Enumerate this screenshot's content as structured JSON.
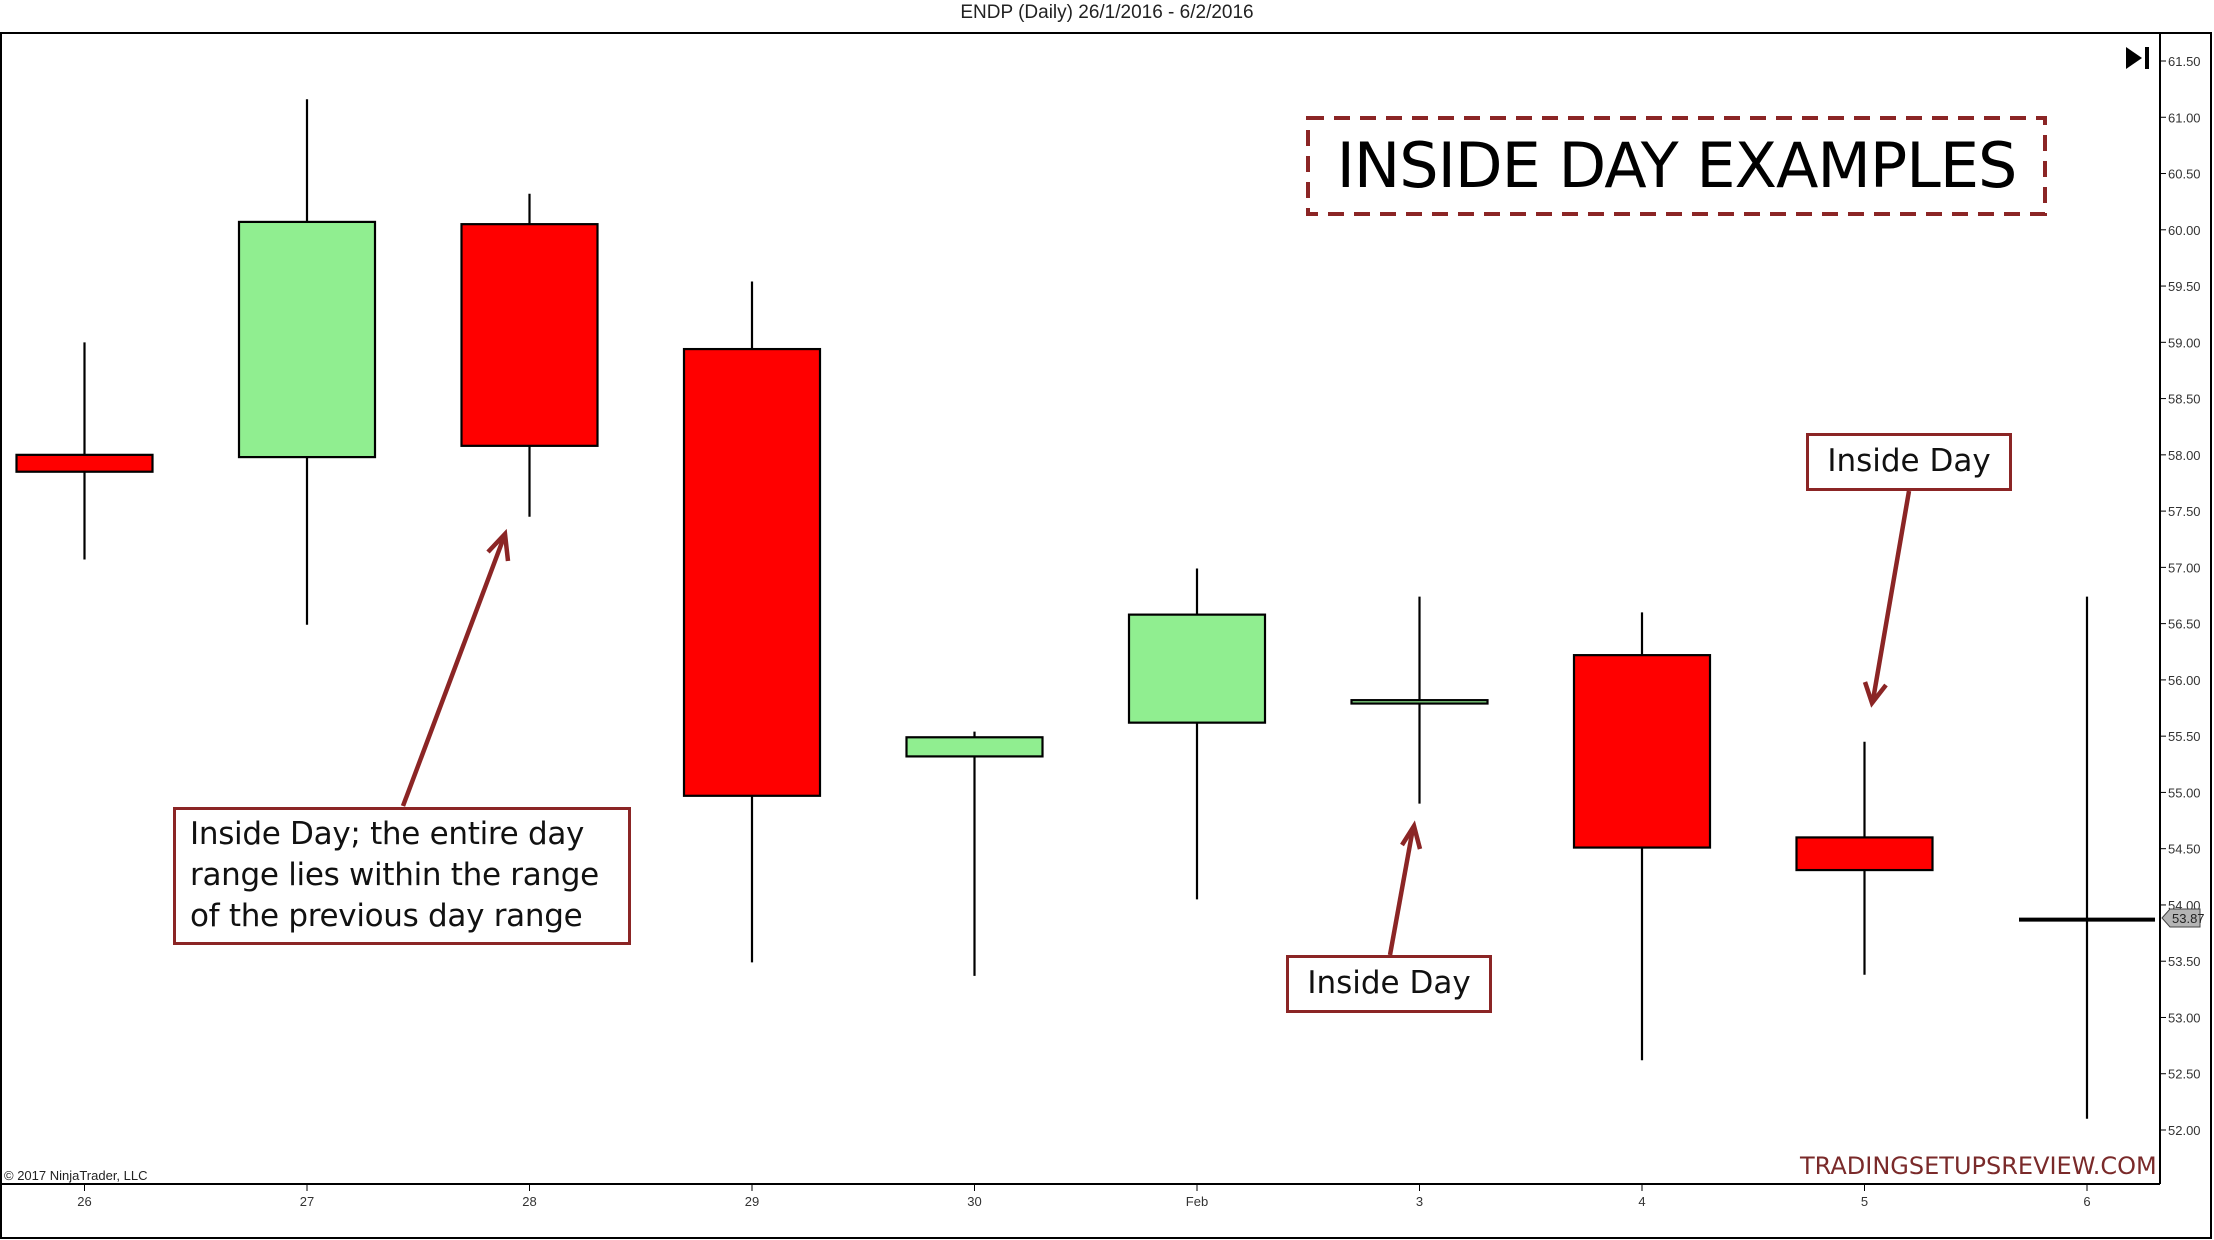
{
  "header": {
    "title": "ENDP (Daily)  26/1/2016 - 6/2/2016"
  },
  "annotations": {
    "title_box": "INSIDE DAY EXAMPLES",
    "main_note": [
      "Inside Day; the entire day",
      "range lies within the range",
      "of the previous day range"
    ],
    "inside_day_3": "Inside Day",
    "inside_day_5": "Inside Day"
  },
  "footer": {
    "copyright": "© 2017 NinjaTrader, LLC",
    "watermark": "TRADINGSETUPSREVIEW.COM"
  },
  "icons": {
    "skip_to_end": "skip-to-end-icon"
  },
  "colors": {
    "up": "#90ee90",
    "down": "#ff0000",
    "annotation": "#8b2525",
    "watermark": "#7a2a2a",
    "price_marker_bg": "#b4b4b4"
  },
  "chart_data": {
    "type": "candlestick",
    "title": "ENDP (Daily)  26/1/2016 - 6/2/2016",
    "xlabel": "",
    "ylabel": "",
    "ylim": [
      52.0,
      61.5
    ],
    "grid": false,
    "y_ticks": [
      "61.50",
      "61.00",
      "60.50",
      "60.00",
      "59.50",
      "59.00",
      "58.50",
      "58.00",
      "57.50",
      "57.00",
      "56.50",
      "56.00",
      "55.50",
      "55.00",
      "54.50",
      "54.00",
      "53.50",
      "53.00",
      "52.50",
      "52.00"
    ],
    "categories": [
      "26",
      "27",
      "28",
      "29",
      "30",
      "Feb",
      "3",
      "4",
      "5",
      "6"
    ],
    "candles": [
      {
        "date": "26",
        "open": 58.0,
        "high": 59.0,
        "low": 57.07,
        "close": 57.85
      },
      {
        "date": "27",
        "open": 57.98,
        "high": 61.16,
        "low": 56.49,
        "close": 60.07
      },
      {
        "date": "28",
        "open": 60.05,
        "high": 60.32,
        "low": 57.45,
        "close": 58.08
      },
      {
        "date": "29",
        "open": 58.94,
        "high": 59.54,
        "low": 53.49,
        "close": 54.97
      },
      {
        "date": "30",
        "open": 55.32,
        "high": 55.54,
        "low": 53.37,
        "close": 55.49
      },
      {
        "date": "Feb",
        "open": 55.62,
        "high": 56.99,
        "low": 54.05,
        "close": 56.58
      },
      {
        "date": "3",
        "open": 55.79,
        "high": 56.74,
        "low": 54.9,
        "close": 55.82
      },
      {
        "date": "4",
        "open": 56.22,
        "high": 56.6,
        "low": 52.62,
        "close": 54.51
      },
      {
        "date": "5",
        "open": 54.6,
        "high": 55.45,
        "low": 53.38,
        "close": 54.31
      },
      {
        "date": "6",
        "open": 53.88,
        "high": 56.74,
        "low": 52.1,
        "close": 53.87
      }
    ],
    "last_price": "53.87",
    "annotations": [
      {
        "text": "Inside Day; the entire day range lies within the range of the previous day range",
        "points_to": "28"
      },
      {
        "text": "Inside Day",
        "points_to": "3"
      },
      {
        "text": "Inside Day",
        "points_to": "5"
      },
      {
        "text": "INSIDE DAY EXAMPLES",
        "type": "title"
      }
    ]
  }
}
